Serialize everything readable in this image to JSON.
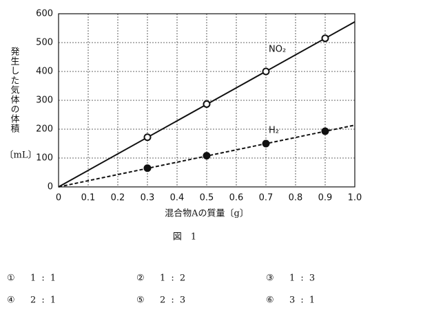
{
  "chart_data": {
    "type": "line",
    "y_label": "発生した気体の体積",
    "y_unit": "〔mL〕",
    "x_label": "混合物Aの質量〔g〕",
    "xlim": [
      0,
      1.0
    ],
    "xticks": [
      0,
      0.1,
      0.2,
      0.3,
      0.4,
      0.5,
      0.6,
      0.7,
      0.8,
      0.9,
      {
        "value": 1.0,
        "label": "1.0"
      }
    ],
    "ylim": [
      0,
      600
    ],
    "yticks": [
      0,
      100,
      200,
      300,
      400,
      500,
      600
    ],
    "grid": true,
    "series": [
      {
        "name": "NO₂",
        "color": "#111111",
        "marker": "open",
        "x": [
          0.3,
          0.5,
          0.7,
          0.9
        ],
        "values": [
          172,
          287,
          400,
          515
        ]
      },
      {
        "name": "H₂",
        "color": "#111111",
        "marker": "filled",
        "x": [
          0.3,
          0.5,
          0.7,
          0.9
        ],
        "values": [
          65,
          108,
          150,
          193
        ]
      }
    ],
    "lines": [
      {
        "color": "#111111",
        "dashed": false,
        "x": [
          0,
          1.0
        ],
        "values": [
          0,
          572
        ]
      },
      {
        "color": "#111111",
        "dashed": true,
        "x": [
          0,
          1.0
        ],
        "values": [
          0,
          214
        ]
      }
    ]
  },
  "caption": "図　1",
  "options": [
    {
      "mark": "①",
      "text": "1 : 1"
    },
    {
      "mark": "②",
      "text": "1 : 2"
    },
    {
      "mark": "③",
      "text": "1 : 3"
    },
    {
      "mark": "④",
      "text": "2 : 1"
    },
    {
      "mark": "⑤",
      "text": "2 : 3"
    },
    {
      "mark": "⑥",
      "text": "3 : 1"
    }
  ]
}
